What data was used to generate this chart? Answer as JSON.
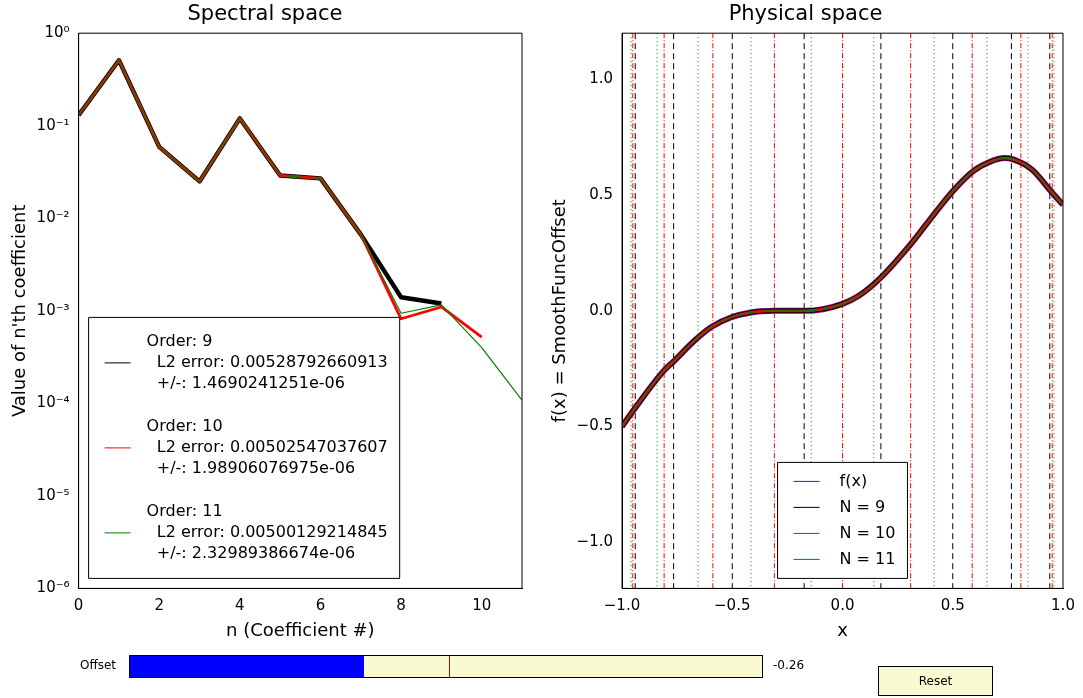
{
  "chart_data": [
    {
      "type": "line",
      "title": "Spectral space",
      "xlabel": "n (Coefficient #)",
      "ylabel": "Value of n'th coefficient",
      "log": "y",
      "x": [
        0,
        1,
        2,
        3,
        4,
        5,
        6,
        7,
        8,
        9,
        10,
        11
      ],
      "xlim": [
        0,
        11
      ],
      "xticks": [
        0,
        2,
        4,
        6,
        8,
        10
      ],
      "ylim": [
        1e-06,
        1
      ],
      "yticks": [
        {
          "value": 1e-06,
          "label": "10⁻⁶"
        },
        {
          "value": 1e-05,
          "label": "10⁻⁵"
        },
        {
          "value": 0.0001,
          "label": "10⁻⁴"
        },
        {
          "value": 0.001,
          "label": "10⁻³"
        },
        {
          "value": 0.01,
          "label": "10⁻²"
        },
        {
          "value": 0.1,
          "label": "10⁻¹"
        },
        {
          "value": 1,
          "label": "10⁰"
        }
      ],
      "grid": false,
      "legend": "bottom left",
      "series": [
        {
          "name": "Order: 9\n  L2 error: 0.00528792660913\n  +/-: 1.4690241251e-06",
          "color": "#000000",
          "values": [
            0.13,
            0.51,
            0.059,
            0.025,
            0.12,
            0.029,
            0.027,
            0.0067,
            0.0014,
            0.0012,
            null,
            null
          ]
        },
        {
          "name": "Order: 10\n  L2 error: 0.00502547037607\n  +/-: 1.98906076975e-06",
          "color": "#ff0000",
          "values": [
            0.13,
            0.51,
            0.059,
            0.025,
            0.12,
            0.029,
            0.027,
            0.0067,
            0.00082,
            0.0011,
            0.00052,
            null
          ]
        },
        {
          "name": "Order: 11\n  L2 error: 0.00500129214845\n  +/-: 2.32989386674e-06",
          "color": "#008000",
          "values": [
            0.13,
            0.51,
            0.059,
            0.025,
            0.12,
            0.029,
            0.027,
            0.0067,
            0.00094,
            0.00116,
            0.0004,
            0.000108
          ]
        }
      ]
    },
    {
      "type": "line",
      "title": "Physical space",
      "xlabel": "x",
      "ylabel": "f(x) = SmoothFuncOffset",
      "x": [
        -1,
        -0.948,
        -0.815,
        -0.763,
        -0.667,
        -0.593,
        -0.504,
        -0.415,
        -0.311,
        -0.17,
        -0.089,
        0,
        0.074,
        0.17,
        0.311,
        0.415,
        0.504,
        0.593,
        0.667,
        0.733,
        0.77,
        0.859,
        0.948,
        1
      ],
      "xlim": [
        -1,
        1
      ],
      "xticks": [
        {
          "value": -1,
          "label": "−1.0"
        },
        {
          "value": -0.5,
          "label": "−0.5"
        },
        {
          "value": 0,
          "label": "0.0"
        },
        {
          "value": 0.5,
          "label": "0.5"
        },
        {
          "value": 1,
          "label": "1.0"
        }
      ],
      "ylim": [
        -1.2,
        1.2
      ],
      "yticks": [
        {
          "value": -1,
          "label": "−1.0"
        },
        {
          "value": -0.5,
          "label": "−0.5"
        },
        {
          "value": 0,
          "label": "0.0"
        },
        {
          "value": 0.5,
          "label": "0.5"
        },
        {
          "value": 1,
          "label": "1.0"
        }
      ],
      "grid": false,
      "legend": "bottom",
      "series": [
        {
          "name": "f(x)",
          "color": "#800080",
          "values": [
            -0.5,
            -0.43,
            -0.264,
            -0.216,
            -0.125,
            -0.069,
            -0.028,
            -0.007,
            0,
            0,
            0.007,
            0.03,
            0.065,
            0.14,
            0.29,
            0.417,
            0.521,
            0.604,
            0.643,
            0.66,
            0.656,
            0.611,
            0.514,
            0.458
          ]
        },
        {
          "name": "N = 9",
          "color": "#000000",
          "values": [
            -0.5,
            -0.43,
            -0.264,
            -0.216,
            -0.125,
            -0.069,
            -0.028,
            -0.007,
            0,
            0,
            0.007,
            0.03,
            0.065,
            0.14,
            0.29,
            0.417,
            0.521,
            0.604,
            0.643,
            0.66,
            0.656,
            0.611,
            0.514,
            0.458
          ]
        },
        {
          "name": "N = 10",
          "color": "#ff0000",
          "values": [
            -0.5,
            -0.43,
            -0.264,
            -0.216,
            -0.125,
            -0.069,
            -0.028,
            -0.007,
            0,
            0,
            0.007,
            0.03,
            0.065,
            0.14,
            0.29,
            0.417,
            0.521,
            0.604,
            0.643,
            0.66,
            0.656,
            0.611,
            0.514,
            0.458
          ]
        },
        {
          "name": "N = 11",
          "color": "#008000",
          "values": [
            -0.5,
            -0.43,
            -0.264,
            -0.216,
            -0.125,
            -0.069,
            -0.028,
            -0.007,
            0,
            0,
            0.007,
            0.03,
            0.065,
            0.14,
            0.29,
            0.417,
            0.521,
            0.604,
            0.643,
            0.66,
            0.656,
            0.611,
            0.514,
            0.458
          ]
        }
      ],
      "ref_lines": [
        {
          "axis": "x",
          "value": -0.94,
          "color": "#000000",
          "line_style": "dashed"
        },
        {
          "axis": "x",
          "value": -0.766,
          "color": "#000000",
          "line_style": "dashed"
        },
        {
          "axis": "x",
          "value": -0.5,
          "color": "#000000",
          "line_style": "dashed"
        },
        {
          "axis": "x",
          "value": -0.174,
          "color": "#000000",
          "line_style": "dashed"
        },
        {
          "axis": "x",
          "value": 0.174,
          "color": "#000000",
          "line_style": "dashed"
        },
        {
          "axis": "x",
          "value": 0.5,
          "color": "#000000",
          "line_style": "dashed"
        },
        {
          "axis": "x",
          "value": 0.766,
          "color": "#000000",
          "line_style": "dashed"
        },
        {
          "axis": "x",
          "value": 0.94,
          "color": "#000000",
          "line_style": "dashed"
        },
        {
          "axis": "x",
          "value": -0.951,
          "color": "#ff0000",
          "line_style": "dashdot"
        },
        {
          "axis": "x",
          "value": -0.809,
          "color": "#ff0000",
          "line_style": "dashdot"
        },
        {
          "axis": "x",
          "value": -0.588,
          "color": "#ff0000",
          "line_style": "dashdot"
        },
        {
          "axis": "x",
          "value": -0.309,
          "color": "#ff0000",
          "line_style": "dashdot"
        },
        {
          "axis": "x",
          "value": 0,
          "color": "#ff0000",
          "line_style": "dashdot"
        },
        {
          "axis": "x",
          "value": 0.309,
          "color": "#ff0000",
          "line_style": "dashdot"
        },
        {
          "axis": "x",
          "value": 0.588,
          "color": "#ff0000",
          "line_style": "dashdot"
        },
        {
          "axis": "x",
          "value": 0.809,
          "color": "#ff0000",
          "line_style": "dashdot"
        },
        {
          "axis": "x",
          "value": 0.951,
          "color": "#ff0000",
          "line_style": "dashdot"
        },
        {
          "axis": "x",
          "value": -0.959,
          "color": "#008000",
          "line_style": "dotted"
        },
        {
          "axis": "x",
          "value": -0.841,
          "color": "#008000",
          "line_style": "dotted"
        },
        {
          "axis": "x",
          "value": -0.655,
          "color": "#008000",
          "line_style": "dotted"
        },
        {
          "axis": "x",
          "value": -0.415,
          "color": "#008000",
          "line_style": "dotted"
        },
        {
          "axis": "x",
          "value": -0.142,
          "color": "#008000",
          "line_style": "dotted"
        },
        {
          "axis": "x",
          "value": 0.142,
          "color": "#008000",
          "line_style": "dotted"
        },
        {
          "axis": "x",
          "value": 0.415,
          "color": "#008000",
          "line_style": "dotted"
        },
        {
          "axis": "x",
          "value": 0.655,
          "color": "#008000",
          "line_style": "dotted"
        },
        {
          "axis": "x",
          "value": 0.841,
          "color": "#008000",
          "line_style": "dotted"
        },
        {
          "axis": "x",
          "value": 0.959,
          "color": "#008000",
          "line_style": "dotted"
        }
      ]
    },
    {
      "type": "other",
      "annotations": [
        "Offset",
        "-0.26",
        "Reset"
      ]
    }
  ]
}
